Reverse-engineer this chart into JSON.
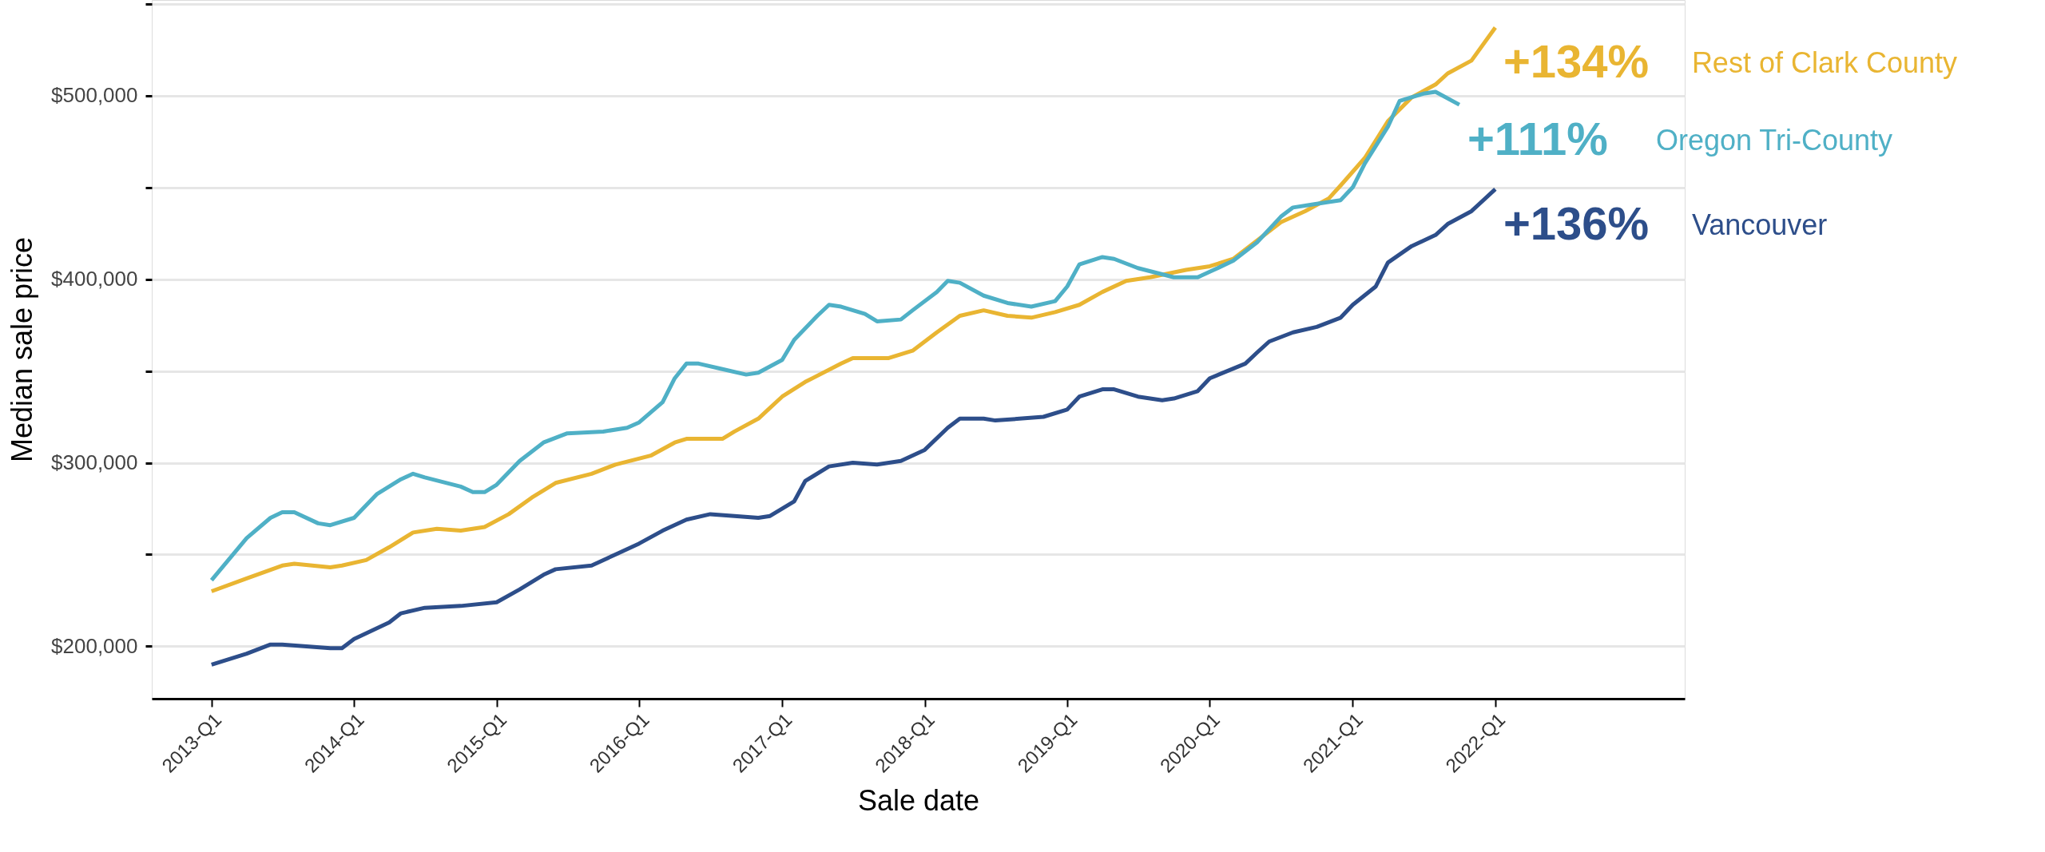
{
  "chart_data": {
    "type": "line",
    "xlabel": "Sale date",
    "ylabel": "Median sale price",
    "xlim": [
      "2012-08",
      "2023-05"
    ],
    "ylim": [
      171500,
      552000
    ],
    "xticks": [
      {
        "value": "2013-01",
        "label": "2013-Q1"
      },
      {
        "value": "2014-01",
        "label": "2014-Q1"
      },
      {
        "value": "2015-01",
        "label": "2015-Q1"
      },
      {
        "value": "2016-01",
        "label": "2016-Q1"
      },
      {
        "value": "2017-01",
        "label": "2017-Q1"
      },
      {
        "value": "2018-01",
        "label": "2018-Q1"
      },
      {
        "value": "2019-01",
        "label": "2019-Q1"
      },
      {
        "value": "2020-01",
        "label": "2020-Q1"
      },
      {
        "value": "2021-01",
        "label": "2021-Q1"
      },
      {
        "value": "2022-01",
        "label": "2022-Q1"
      }
    ],
    "yticks": [
      {
        "value": 200000,
        "label": "$200,000"
      },
      {
        "value": 250000,
        "label": null
      },
      {
        "value": 300000,
        "label": "$300,000"
      },
      {
        "value": 350000,
        "label": null
      },
      {
        "value": 400000,
        "label": "$400,000"
      },
      {
        "value": 450000,
        "label": null
      },
      {
        "value": 500000,
        "label": "$500,000"
      },
      {
        "value": 550000,
        "label": null
      }
    ],
    "grid": "y",
    "legend": false,
    "marker": "none",
    "line_style": "solid",
    "series": [
      {
        "name": "Rest of Clark County",
        "color": "#e9b532",
        "x": [
          "2013-01",
          "2013-04",
          "2013-07",
          "2013-08",
          "2013-11",
          "2013-12",
          "2014-02",
          "2014-04",
          "2014-06",
          "2014-08",
          "2014-10",
          "2014-12",
          "2015-02",
          "2015-04",
          "2015-06",
          "2015-09",
          "2015-11",
          "2016-02",
          "2016-04",
          "2016-05",
          "2016-08",
          "2016-09",
          "2016-11",
          "2017-01",
          "2017-03",
          "2017-06",
          "2017-07",
          "2017-10",
          "2017-12",
          "2018-02",
          "2018-04",
          "2018-06",
          "2018-08",
          "2018-10",
          "2018-12",
          "2019-02",
          "2019-04",
          "2019-06",
          "2019-08",
          "2019-11",
          "2020-01",
          "2020-03",
          "2020-05",
          "2020-07",
          "2020-09",
          "2020-11",
          "2020-12",
          "2021-02",
          "2021-04",
          "2021-06",
          "2021-08",
          "2021-09",
          "2021-11",
          "2022-01"
        ],
        "values": [
          230000,
          237000,
          244000,
          245000,
          243000,
          244000,
          247000,
          254000,
          262000,
          264000,
          263000,
          265000,
          272000,
          281000,
          289000,
          294000,
          299000,
          304000,
          311000,
          313000,
          313000,
          317000,
          324000,
          336000,
          344000,
          354000,
          357000,
          357000,
          361000,
          371000,
          380000,
          383000,
          380000,
          379000,
          382000,
          386000,
          393000,
          399000,
          401000,
          405000,
          407000,
          411000,
          421000,
          431000,
          437000,
          444000,
          451000,
          466000,
          486000,
          499000,
          506000,
          512000,
          519000,
          537000
        ]
      },
      {
        "name": "Oregon Tri-County",
        "color": "#4fb0c6",
        "x": [
          "2013-01",
          "2013-04",
          "2013-06",
          "2013-07",
          "2013-08",
          "2013-10",
          "2013-11",
          "2014-01",
          "2014-03",
          "2014-05",
          "2014-06",
          "2014-07",
          "2014-10",
          "2014-11",
          "2014-12",
          "2015-01",
          "2015-03",
          "2015-05",
          "2015-07",
          "2015-10",
          "2015-12",
          "2016-01",
          "2016-03",
          "2016-04",
          "2016-05",
          "2016-06",
          "2016-08",
          "2016-10",
          "2016-11",
          "2017-01",
          "2017-02",
          "2017-04",
          "2017-05",
          "2017-06",
          "2017-08",
          "2017-09",
          "2017-11",
          "2017-12",
          "2018-02",
          "2018-03",
          "2018-04",
          "2018-06",
          "2018-08",
          "2018-10",
          "2018-12",
          "2019-01",
          "2019-02",
          "2019-04",
          "2019-05",
          "2019-07",
          "2019-10",
          "2019-12",
          "2020-01",
          "2020-03",
          "2020-05",
          "2020-07",
          "2020-08",
          "2020-10",
          "2020-12",
          "2021-01",
          "2021-02",
          "2021-04",
          "2021-05",
          "2021-07",
          "2021-08",
          "2021-10"
        ],
        "values": [
          236000,
          259000,
          270000,
          273000,
          273000,
          267000,
          266000,
          270000,
          283000,
          291000,
          294000,
          292000,
          287000,
          284000,
          284000,
          288000,
          301000,
          311000,
          316000,
          317000,
          319000,
          322000,
          333000,
          346000,
          354000,
          354000,
          351000,
          348000,
          349000,
          356000,
          367000,
          380000,
          386000,
          385000,
          381000,
          377000,
          378000,
          383000,
          393000,
          399000,
          398000,
          391000,
          387000,
          385000,
          388000,
          396000,
          408000,
          412000,
          411000,
          406000,
          401000,
          401000,
          404000,
          410000,
          420000,
          434000,
          439000,
          441000,
          443000,
          450000,
          463000,
          483000,
          497000,
          501000,
          502000,
          495000
        ]
      },
      {
        "name": "Vancouver",
        "color": "#2d4e8a",
        "x": [
          "2013-01",
          "2013-04",
          "2013-06",
          "2013-07",
          "2013-09",
          "2013-11",
          "2013-12",
          "2014-01",
          "2014-04",
          "2014-05",
          "2014-07",
          "2014-10",
          "2015-01",
          "2015-03",
          "2015-05",
          "2015-06",
          "2015-09",
          "2015-11",
          "2016-01",
          "2016-03",
          "2016-05",
          "2016-07",
          "2016-09",
          "2016-11",
          "2016-12",
          "2017-02",
          "2017-03",
          "2017-05",
          "2017-07",
          "2017-09",
          "2017-11",
          "2018-01",
          "2018-03",
          "2018-04",
          "2018-06",
          "2018-07",
          "2018-09",
          "2018-11",
          "2019-01",
          "2019-02",
          "2019-04",
          "2019-05",
          "2019-07",
          "2019-09",
          "2019-10",
          "2019-12",
          "2020-01",
          "2020-04",
          "2020-05",
          "2020-06",
          "2020-08",
          "2020-10",
          "2020-12",
          "2021-01",
          "2021-03",
          "2021-04",
          "2021-06",
          "2021-08",
          "2021-09",
          "2021-11",
          "2022-01"
        ],
        "values": [
          190000,
          196000,
          201000,
          201000,
          200000,
          199000,
          199000,
          204000,
          213000,
          218000,
          221000,
          222000,
          224000,
          231000,
          239000,
          242000,
          244000,
          250000,
          256000,
          263000,
          269000,
          272000,
          271000,
          270000,
          271000,
          279000,
          290000,
          298000,
          300000,
          299000,
          301000,
          307000,
          319000,
          324000,
          324000,
          323000,
          324000,
          325000,
          329000,
          336000,
          340000,
          340000,
          336000,
          334000,
          335000,
          339000,
          346000,
          354000,
          360000,
          366000,
          371000,
          374000,
          379000,
          386000,
          396000,
          409000,
          418000,
          424000,
          430000,
          437000,
          449000
        ]
      }
    ],
    "annotations": [
      "+134%",
      "+111%",
      "+136%"
    ]
  }
}
